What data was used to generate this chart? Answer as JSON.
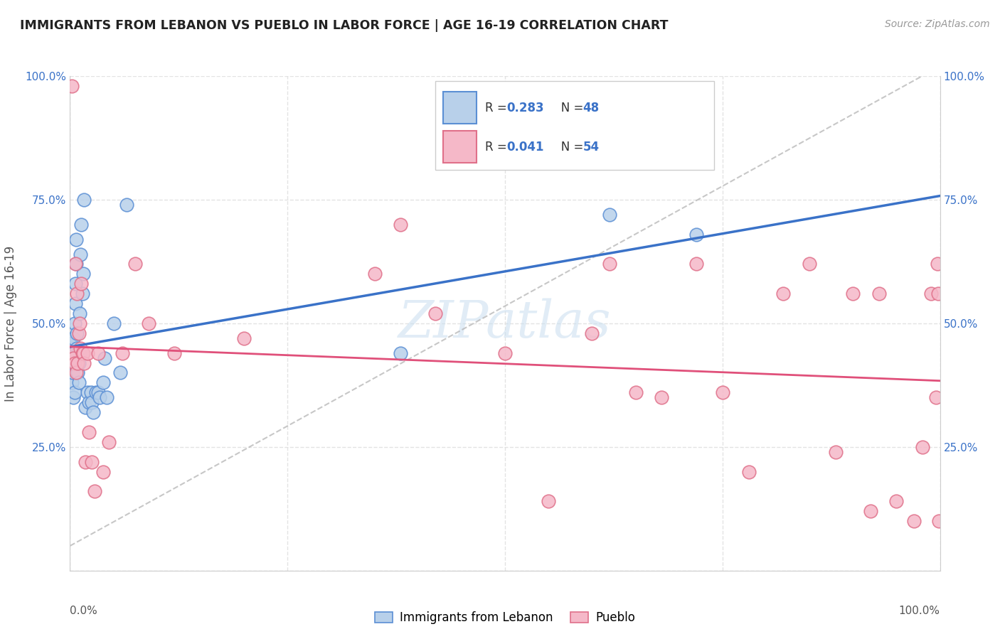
{
  "title": "IMMIGRANTS FROM LEBANON VS PUEBLO IN LABOR FORCE | AGE 16-19 CORRELATION CHART",
  "source": "Source: ZipAtlas.com",
  "ylabel": "In Labor Force | Age 16-19",
  "legend_label1": "Immigrants from Lebanon",
  "legend_label2": "Pueblo",
  "legend_R1": "0.283",
  "legend_N1": "48",
  "legend_R2": "0.041",
  "legend_N2": "54",
  "color_blue_fill": "#b8d0ea",
  "color_blue_edge": "#5b8fd4",
  "color_blue_line": "#3a72c8",
  "color_pink_fill": "#f5b8c8",
  "color_pink_edge": "#e0708a",
  "color_pink_line": "#e0507a",
  "color_gray_dashed": "#b0b0b0",
  "watermark_color": "#cde0f0",
  "background_color": "#ffffff",
  "grid_color": "#e0e0e0",
  "xlim": [
    0.0,
    1.0
  ],
  "ylim": [
    0.0,
    1.0
  ],
  "lebanon_x": [
    0.001,
    0.001,
    0.002,
    0.002,
    0.003,
    0.003,
    0.003,
    0.004,
    0.004,
    0.004,
    0.005,
    0.005,
    0.005,
    0.006,
    0.006,
    0.007,
    0.007,
    0.008,
    0.008,
    0.009,
    0.009,
    0.01,
    0.01,
    0.011,
    0.011,
    0.012,
    0.013,
    0.014,
    0.015,
    0.016,
    0.018,
    0.02,
    0.022,
    0.024,
    0.025,
    0.027,
    0.03,
    0.032,
    0.034,
    0.038,
    0.04,
    0.042,
    0.05,
    0.058,
    0.065,
    0.38,
    0.62,
    0.72
  ],
  "lebanon_y": [
    0.42,
    0.45,
    0.38,
    0.46,
    0.43,
    0.4,
    0.44,
    0.35,
    0.47,
    0.42,
    0.5,
    0.36,
    0.43,
    0.54,
    0.58,
    0.62,
    0.67,
    0.45,
    0.48,
    0.4,
    0.44,
    0.42,
    0.38,
    0.44,
    0.52,
    0.64,
    0.7,
    0.56,
    0.6,
    0.75,
    0.33,
    0.36,
    0.34,
    0.36,
    0.34,
    0.32,
    0.36,
    0.36,
    0.35,
    0.38,
    0.43,
    0.35,
    0.5,
    0.4,
    0.74,
    0.44,
    0.72,
    0.68
  ],
  "pueblo_x": [
    0.002,
    0.003,
    0.004,
    0.005,
    0.006,
    0.007,
    0.008,
    0.009,
    0.01,
    0.011,
    0.012,
    0.013,
    0.014,
    0.015,
    0.016,
    0.018,
    0.02,
    0.022,
    0.025,
    0.028,
    0.032,
    0.038,
    0.045,
    0.06,
    0.075,
    0.09,
    0.12,
    0.2,
    0.35,
    0.38,
    0.42,
    0.5,
    0.55,
    0.6,
    0.62,
    0.65,
    0.68,
    0.72,
    0.75,
    0.78,
    0.82,
    0.85,
    0.88,
    0.9,
    0.92,
    0.93,
    0.95,
    0.97,
    0.98,
    0.99,
    0.995,
    0.997,
    0.998,
    0.999
  ],
  "pueblo_y": [
    0.98,
    0.44,
    0.43,
    0.42,
    0.62,
    0.4,
    0.56,
    0.42,
    0.48,
    0.5,
    0.45,
    0.58,
    0.44,
    0.44,
    0.42,
    0.22,
    0.44,
    0.28,
    0.22,
    0.16,
    0.44,
    0.2,
    0.26,
    0.44,
    0.62,
    0.5,
    0.44,
    0.47,
    0.6,
    0.7,
    0.52,
    0.44,
    0.14,
    0.48,
    0.62,
    0.36,
    0.35,
    0.62,
    0.36,
    0.2,
    0.56,
    0.62,
    0.24,
    0.56,
    0.12,
    0.56,
    0.14,
    0.1,
    0.25,
    0.56,
    0.35,
    0.62,
    0.56,
    0.1
  ]
}
